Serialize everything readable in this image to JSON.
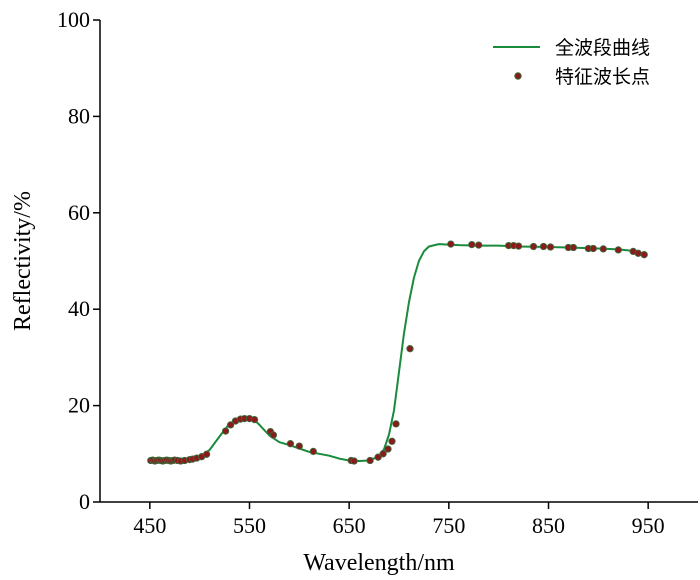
{
  "chart_data": {
    "type": "line",
    "xlabel": "Wavelength/nm",
    "ylabel": "Reflectivity/%",
    "xlim": [
      400,
      1000
    ],
    "ylim": [
      0,
      100
    ],
    "xticks": [
      450,
      550,
      650,
      750,
      850,
      950
    ],
    "yticks": [
      0,
      20,
      40,
      60,
      80,
      100
    ],
    "legend_position": "top-right",
    "series": [
      {
        "name": "全波段曲线",
        "type": "line",
        "color": "#1a8a3c",
        "x": [
          450,
          460,
          470,
          480,
          490,
          500,
          510,
          520,
          530,
          540,
          550,
          555,
          560,
          570,
          580,
          590,
          600,
          610,
          620,
          630,
          640,
          650,
          660,
          670,
          680,
          685,
          690,
          695,
          700,
          705,
          710,
          715,
          720,
          725,
          730,
          740,
          750,
          760,
          780,
          800,
          820,
          850,
          870,
          900,
          920,
          930,
          940,
          948
        ],
        "y": [
          8.7,
          8.6,
          8.5,
          8.6,
          8.8,
          9.3,
          10.8,
          13.6,
          16.3,
          17.2,
          17.3,
          17.0,
          16.0,
          13.8,
          12.4,
          11.8,
          11.1,
          10.4,
          10.0,
          9.6,
          9.0,
          8.6,
          8.5,
          8.6,
          9.5,
          11.0,
          14.0,
          19.0,
          27.0,
          35.0,
          41.5,
          46.5,
          50.0,
          52.0,
          53.0,
          53.5,
          53.4,
          53.3,
          53.2,
          53.2,
          53.0,
          52.9,
          52.8,
          52.6,
          52.4,
          52.2,
          51.9,
          51.3
        ]
      },
      {
        "name": "特征波长点",
        "type": "scatter",
        "color": "#8b1a1a",
        "x": [
          451,
          453,
          455,
          457,
          459,
          461,
          463,
          465,
          467,
          469,
          471,
          473,
          475,
          478,
          481,
          485,
          490,
          493,
          497,
          502,
          507,
          526,
          531,
          536,
          541,
          545,
          550,
          555,
          571,
          574,
          591,
          600,
          614,
          652,
          655,
          671,
          679,
          684,
          689,
          693,
          697,
          711,
          752,
          773,
          780,
          810,
          815,
          820,
          835,
          845,
          852,
          870,
          875,
          890,
          895,
          905,
          920,
          935,
          940,
          946
        ],
        "y": [
          8.6,
          8.7,
          8.5,
          8.6,
          8.7,
          8.6,
          8.5,
          8.6,
          8.7,
          8.6,
          8.5,
          8.6,
          8.7,
          8.6,
          8.5,
          8.6,
          8.8,
          8.9,
          9.1,
          9.4,
          9.9,
          14.7,
          16.0,
          16.8,
          17.2,
          17.3,
          17.3,
          17.1,
          14.6,
          13.9,
          12.1,
          11.6,
          10.5,
          8.6,
          8.5,
          8.6,
          9.3,
          10.0,
          11.0,
          12.6,
          16.2,
          31.8,
          53.5,
          53.4,
          53.3,
          53.2,
          53.2,
          53.1,
          53.0,
          53.0,
          52.9,
          52.8,
          52.8,
          52.6,
          52.6,
          52.5,
          52.3,
          52.0,
          51.6,
          51.3
        ]
      }
    ]
  }
}
